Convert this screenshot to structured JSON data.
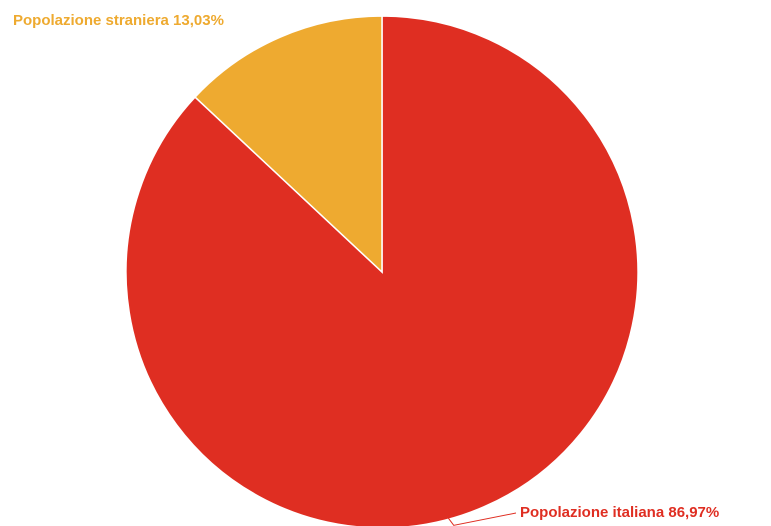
{
  "chart_data": {
    "type": "pie",
    "title": "",
    "slices": [
      {
        "label": "Popolazione italiana",
        "value": 86.97,
        "display": "Popolazione italiana 86,97%",
        "color": "#df2e22"
      },
      {
        "label": "Popolazione straniera",
        "value": 13.03,
        "display": "Popolazione straniera 13,03%",
        "color": "#eeaa30"
      }
    ],
    "start_angle_deg": 0,
    "direction": "clockwise"
  }
}
